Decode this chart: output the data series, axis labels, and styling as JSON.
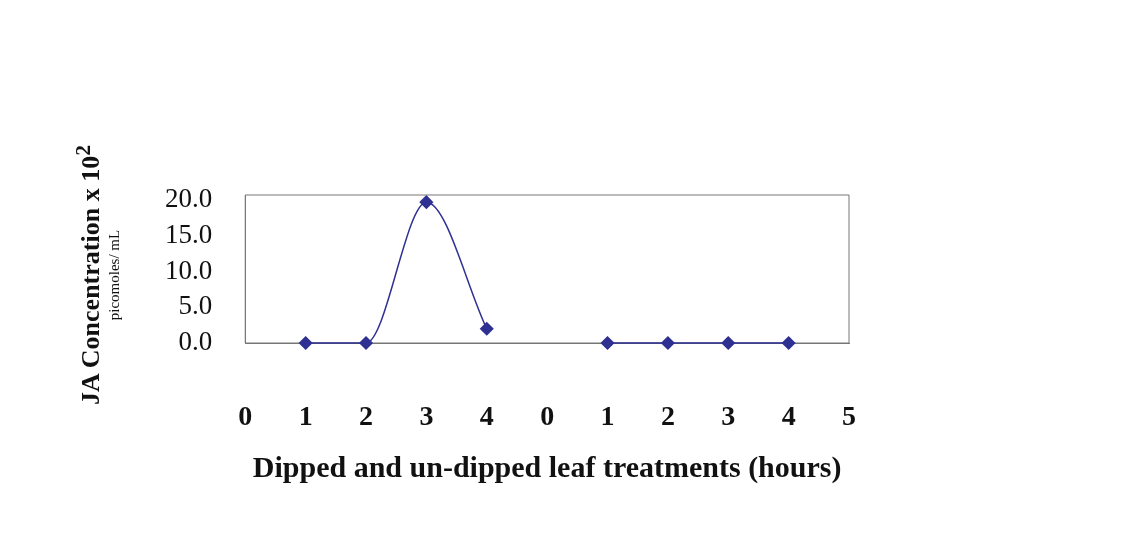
{
  "chart_data": {
    "type": "line",
    "xlabel": "Dipped and un-dipped leaf treatments (hours)",
    "ylabel": "JA Concentration x 10$^{2}$\npicomoles/ mL",
    "categories": [
      "0",
      "1",
      "2",
      "3",
      "4",
      "0",
      "1",
      "2",
      "3",
      "4",
      "5"
    ],
    "series": [
      {
        "color": "#2e3192",
        "values": [
          null,
          0,
          0,
          19.7,
          2.0,
          null,
          0,
          0,
          0,
          0,
          null
        ]
      }
    ],
    "ylim": [
      0,
      20.7
    ],
    "yticks": [
      {
        "value": 0,
        "label": "0.0"
      },
      {
        "value": 5,
        "label": "5.0"
      },
      {
        "value": 10,
        "label": "10.0"
      },
      {
        "value": 15,
        "label": "15.0"
      },
      {
        "value": 20,
        "label": "20.0"
      }
    ],
    "marker": "diamond",
    "grid": false,
    "legend": false
  }
}
